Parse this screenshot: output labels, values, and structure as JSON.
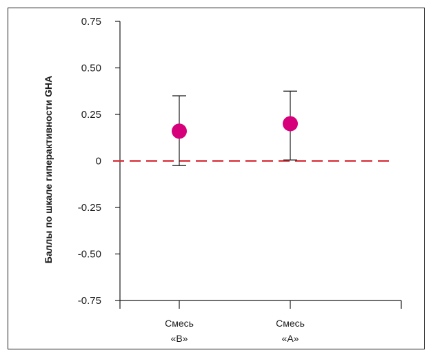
{
  "chart_data": {
    "type": "scatter",
    "title": "",
    "xlabel": "",
    "ylabel": "Баллы по шкале гиперактивности GHA",
    "ylim": [
      -0.75,
      0.75
    ],
    "yticks": [
      {
        "value": 0.75,
        "label": "0.75"
      },
      {
        "value": 0.5,
        "label": "0.50"
      },
      {
        "value": 0.25,
        "label": "0.25"
      },
      {
        "value": 0,
        "label": "0"
      },
      {
        "value": -0.25,
        "label": "-0.25"
      },
      {
        "value": -0.5,
        "label": "-0.50"
      },
      {
        "value": -0.75,
        "label": "-0.75"
      }
    ],
    "categories": [
      {
        "line1": "Смесь",
        "line2": "«B»"
      },
      {
        "line1": "Смесь",
        "line2": "«A»"
      }
    ],
    "points": [
      {
        "category": 0,
        "value": 0.16,
        "lower": -0.025,
        "upper": 0.35
      },
      {
        "category": 1,
        "value": 0.2,
        "lower": 0.005,
        "upper": 0.375
      }
    ],
    "reference_line": {
      "value": 0,
      "style": "dashed"
    },
    "grid": false,
    "legend": "none",
    "colors": {
      "point": "#d6007a",
      "reference_line": "#d9303a",
      "axis": "#1a1a1a"
    }
  }
}
